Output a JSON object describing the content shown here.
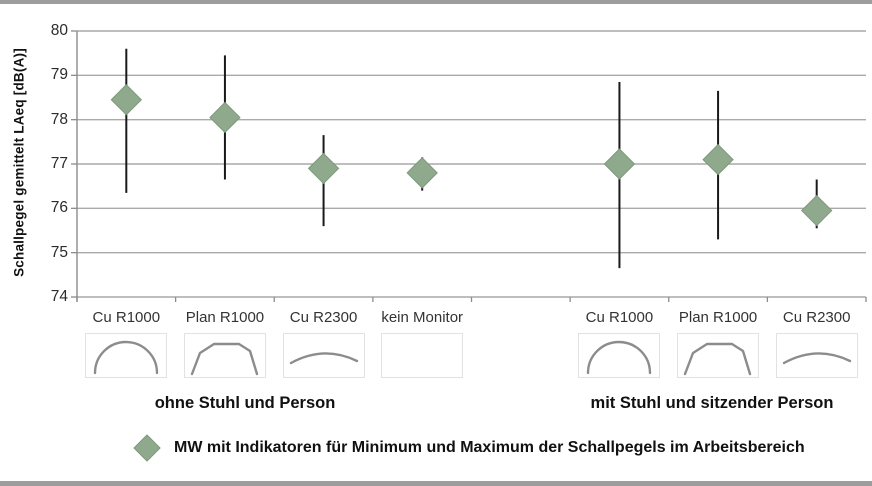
{
  "page": {
    "background": "#ffffff",
    "top_bar_color": "#9d9d9d",
    "bottom_bar_color": "#9d9d9d"
  },
  "chart_data": {
    "type": "scatter",
    "subtype": "mean-with-min-max-range-bars",
    "title": "",
    "ylabel": "Schallpegel gemittelt LAeq [dB(A)]",
    "xlabel": "",
    "ylim": [
      74,
      80
    ],
    "yticks": [
      80,
      79,
      78,
      77,
      76,
      75,
      74
    ],
    "grid": "horizontal",
    "marker": {
      "shape": "diamond",
      "color": "#8FA98C"
    },
    "error_bar_color": "#1a1a1a",
    "gridline_color": "#a9a9a9",
    "axis_color": "#8c8c8c",
    "groups": [
      {
        "label": "ohne Stuhl und Person",
        "items": [
          {
            "category": "Cu R1000",
            "icon": "monitor-curve-strong-icon",
            "mean": 78.45,
            "min": 76.35,
            "max": 79.6
          },
          {
            "category": "Plan R1000",
            "icon": "monitor-curve-flattop-icon",
            "mean": 78.05,
            "min": 76.65,
            "max": 79.45
          },
          {
            "category": "Cu R2300",
            "icon": "monitor-curve-shallow-icon",
            "mean": 76.9,
            "min": 75.6,
            "max": 77.65
          },
          {
            "category": "kein Monitor",
            "icon": "no-monitor-empty-box",
            "mean": 76.8,
            "min": 76.4,
            "max": 77.15
          }
        ]
      },
      {
        "label": "mit Stuhl und sitzender Person",
        "items": [
          {
            "category": "Cu R1000",
            "icon": "monitor-curve-strong-icon",
            "mean": 77.0,
            "min": 74.65,
            "max": 78.85
          },
          {
            "category": "Plan R1000",
            "icon": "monitor-curve-flattop-icon",
            "mean": 77.1,
            "min": 75.3,
            "max": 78.65
          },
          {
            "category": "Cu R2300",
            "icon": "monitor-curve-shallow-icon",
            "mean": 75.95,
            "min": 75.55,
            "max": 76.65
          }
        ]
      }
    ],
    "legend": {
      "marker": "diamond",
      "marker_color": "#8FA98C",
      "position": "bottom",
      "label": "MW mit Indikatoren für Minimum und Maximum der Schallpegels im Arbeitsbereich"
    }
  }
}
